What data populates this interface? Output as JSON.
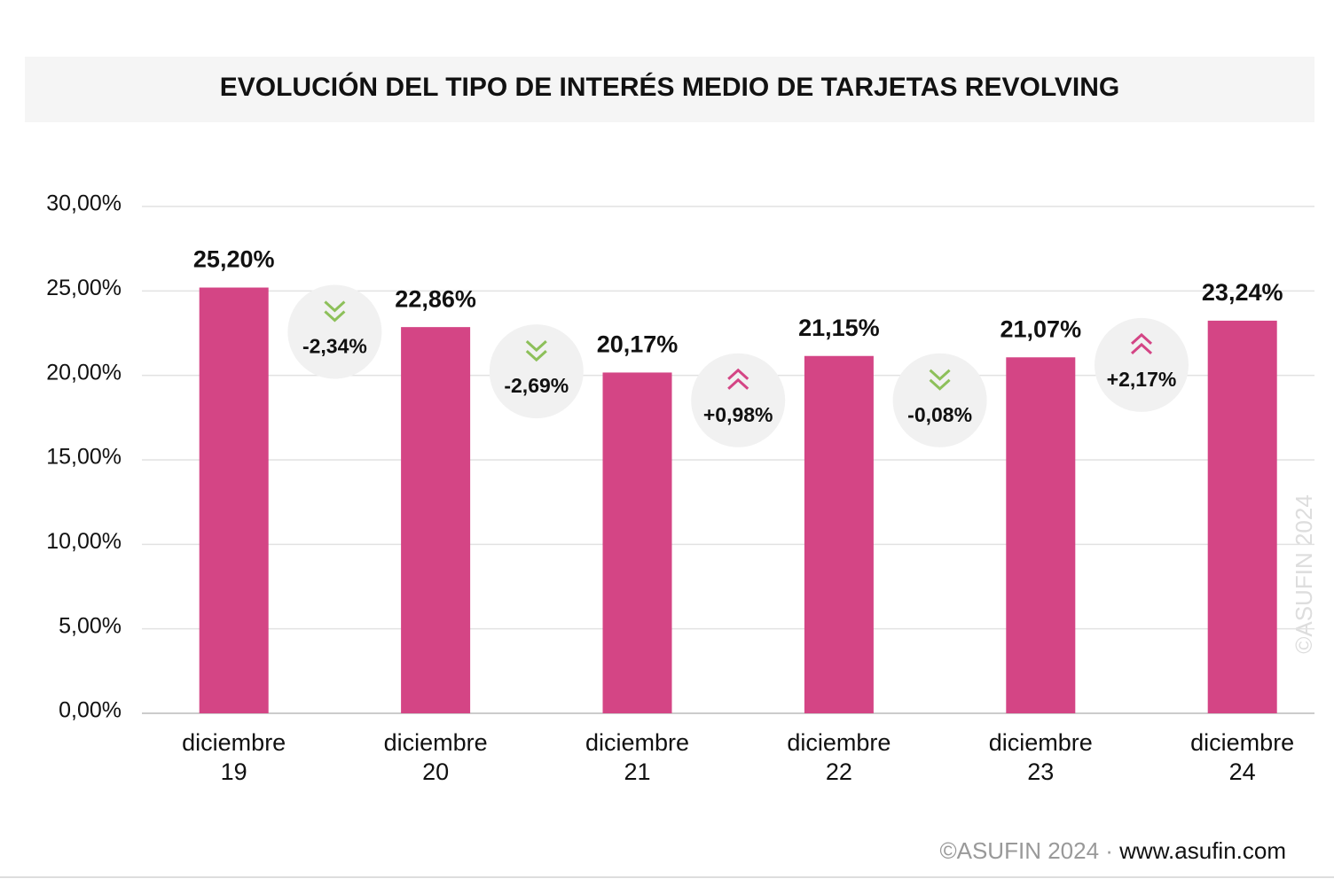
{
  "chart_data": {
    "type": "bar",
    "title": "EVOLUCIÓN DEL TIPO DE INTERÉS MEDIO DE TARJETAS REVOLVING",
    "categories": [
      "diciembre 19",
      "diciembre 20",
      "diciembre 21",
      "diciembre 22",
      "diciembre 23",
      "diciembre 24"
    ],
    "values": [
      25.2,
      22.86,
      20.17,
      21.15,
      21.07,
      23.24
    ],
    "value_labels": [
      "25,20%",
      "22,86%",
      "20,17%",
      "21,15%",
      "21,07%",
      "23,24%"
    ],
    "color": "#d44585",
    "ylim": [
      0,
      30
    ],
    "yticks": [
      {
        "value": 0,
        "label": "0,00%"
      },
      {
        "value": 5,
        "label": "5,00%"
      },
      {
        "value": 10,
        "label": "10,00%"
      },
      {
        "value": 15,
        "label": "15,00%"
      },
      {
        "value": 20,
        "label": "20,00%"
      },
      {
        "value": 25,
        "label": "25,00%"
      },
      {
        "value": 30,
        "label": "30,00%"
      }
    ],
    "grid": true,
    "changes": {
      "values": [
        -2.34,
        -2.69,
        0.98,
        -0.08,
        2.17
      ],
      "value_labels": [
        "-2,34%",
        "-2,69%",
        "+0,98%",
        "-0,08%",
        "+2,17%"
      ],
      "up_color": "#d44585",
      "down_color": "#8dc05a"
    },
    "watermark": "©ASUFIN 2024",
    "footer": {
      "copyright": "©ASUFIN 2024 ·",
      "url": "www.asufin.com"
    }
  }
}
